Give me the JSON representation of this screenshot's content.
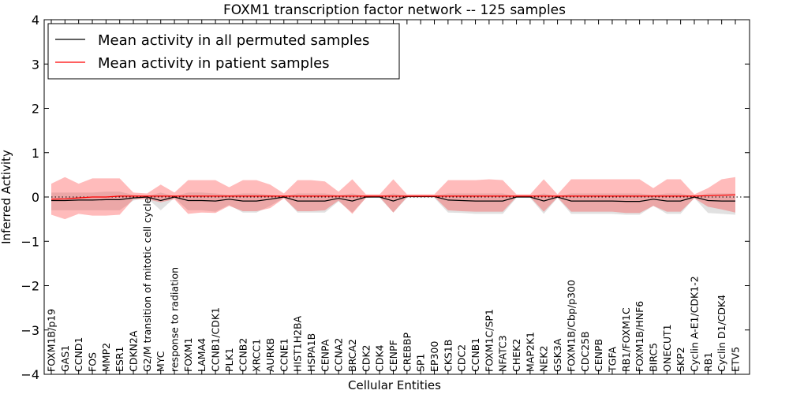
{
  "chart_data": {
    "type": "line",
    "title": "FOXM1 transcription factor network -- 125 samples",
    "xlabel": "Cellular Entities",
    "ylabel": "Inferred Activity",
    "ylim": [
      -4,
      4
    ],
    "yticks": [
      -4,
      -3,
      -2,
      -1,
      0,
      1,
      2,
      3,
      4
    ],
    "ytick_labels": [
      "−4",
      "−3",
      "−2",
      "−1",
      "0",
      "1",
      "2",
      "3",
      "4"
    ],
    "legend_position": "top-left",
    "categories": [
      "FOXM1B/p19",
      "GAS1",
      "CCND1",
      "FOS",
      "MMP2",
      "ESR1",
      "CDKN2A",
      "G2/M transition of mitotic cell cycle",
      "MYC",
      "response to radiation",
      "FOXM1",
      "LAMA4",
      "CCNB1/CDK1",
      "PLK1",
      "CCNB2",
      "XRCC1",
      "AURKB",
      "CCNE1",
      "HIST1H2BA",
      "HSPA1B",
      "CENPA",
      "CCNA2",
      "BRCA2",
      "CDK2",
      "CDK4",
      "CENPF",
      "CREBBP",
      "SP1",
      "EP300",
      "CKS1B",
      "CDC2",
      "CCNB1",
      "FOXM1C/SP1",
      "NFATC3",
      "CHEK2",
      "MAP2K1",
      "NEK2",
      "GSK3A",
      "FOXM1B/Cbp/p300",
      "CDC25B",
      "CENPB",
      "TGFA",
      "RB1/FOXM1C",
      "FOXM1B/HNF6",
      "BIRC5",
      "ONECUT1",
      "SKP2",
      "Cyclin A-E1/CDK1-2",
      "RB1",
      "Cyclin D1/CDK4",
      "ETV5"
    ],
    "series": [
      {
        "name": "Mean activity in all permuted samples",
        "color": "#000000",
        "values": [
          -0.08,
          -0.08,
          -0.07,
          -0.07,
          -0.06,
          -0.06,
          -0.02,
          0.0,
          -0.08,
          0.0,
          -0.08,
          -0.08,
          -0.09,
          -0.05,
          -0.09,
          -0.09,
          -0.05,
          0.0,
          -0.09,
          -0.09,
          -0.09,
          -0.03,
          -0.09,
          0.0,
          0.0,
          -0.09,
          0.01,
          0.01,
          0.01,
          -0.07,
          -0.08,
          -0.09,
          -0.09,
          -0.09,
          0.0,
          0.0,
          -0.09,
          0.0,
          -0.09,
          -0.09,
          -0.09,
          -0.09,
          -0.1,
          -0.1,
          -0.05,
          -0.09,
          -0.09,
          0.0,
          -0.08,
          -0.09,
          -0.09
        ],
        "band_low": [
          -0.3,
          -0.3,
          -0.3,
          -0.3,
          -0.3,
          -0.3,
          -0.08,
          -0.02,
          -0.3,
          -0.02,
          -0.3,
          -0.3,
          -0.33,
          -0.18,
          -0.35,
          -0.35,
          -0.2,
          -0.02,
          -0.35,
          -0.35,
          -0.35,
          -0.1,
          -0.35,
          -0.02,
          -0.02,
          -0.35,
          -0.02,
          -0.02,
          -0.02,
          -0.35,
          -0.36,
          -0.38,
          -0.38,
          -0.38,
          -0.02,
          -0.02,
          -0.38,
          -0.02,
          -0.38,
          -0.38,
          -0.38,
          -0.38,
          -0.4,
          -0.4,
          -0.2,
          -0.38,
          -0.38,
          -0.02,
          -0.36,
          -0.38,
          -0.4
        ],
        "band_high": [
          0.1,
          0.1,
          0.1,
          0.1,
          0.12,
          0.12,
          0.05,
          0.02,
          0.1,
          0.02,
          0.1,
          0.1,
          0.08,
          0.05,
          0.08,
          0.08,
          0.05,
          0.02,
          0.08,
          0.08,
          0.08,
          0.04,
          0.08,
          0.02,
          0.02,
          0.08,
          0.03,
          0.03,
          0.03,
          0.08,
          0.08,
          0.08,
          0.08,
          0.08,
          0.02,
          0.02,
          0.08,
          0.02,
          0.08,
          0.08,
          0.08,
          0.08,
          0.08,
          0.08,
          0.05,
          0.08,
          0.08,
          0.02,
          0.08,
          0.08,
          0.08
        ]
      },
      {
        "name": "Mean activity in patient samples",
        "color": "#ff0000",
        "values": [
          -0.05,
          -0.04,
          -0.02,
          0.0,
          0.0,
          0.02,
          0.02,
          0.02,
          0.02,
          0.02,
          0.02,
          0.02,
          0.02,
          0.02,
          0.02,
          0.02,
          0.02,
          0.02,
          0.02,
          0.02,
          0.02,
          0.02,
          0.02,
          0.02,
          0.02,
          0.02,
          0.02,
          0.02,
          0.02,
          0.02,
          0.02,
          0.02,
          0.02,
          0.02,
          0.02,
          0.02,
          0.02,
          0.02,
          0.02,
          0.02,
          0.02,
          0.02,
          0.02,
          0.02,
          0.02,
          0.02,
          0.02,
          0.02,
          0.03,
          0.04,
          0.05
        ],
        "band_low": [
          -0.4,
          -0.5,
          -0.38,
          -0.42,
          -0.42,
          -0.4,
          -0.05,
          -0.05,
          -0.12,
          -0.05,
          -0.38,
          -0.35,
          -0.36,
          -0.2,
          -0.32,
          -0.32,
          -0.25,
          -0.03,
          -0.32,
          -0.32,
          -0.3,
          -0.08,
          -0.38,
          -0.02,
          0.0,
          -0.35,
          0.0,
          0.0,
          0.0,
          -0.3,
          -0.32,
          -0.33,
          -0.33,
          -0.33,
          0.0,
          0.0,
          -0.33,
          -0.01,
          -0.33,
          -0.33,
          -0.33,
          -0.33,
          -0.36,
          -0.36,
          -0.2,
          -0.33,
          -0.33,
          -0.03,
          -0.22,
          -0.28,
          -0.35
        ],
        "band_high": [
          0.3,
          0.45,
          0.3,
          0.42,
          0.42,
          0.42,
          0.1,
          0.08,
          0.28,
          0.1,
          0.38,
          0.38,
          0.38,
          0.22,
          0.38,
          0.38,
          0.28,
          0.08,
          0.38,
          0.38,
          0.35,
          0.12,
          0.4,
          0.06,
          0.06,
          0.4,
          0.06,
          0.06,
          0.06,
          0.38,
          0.38,
          0.38,
          0.4,
          0.38,
          0.06,
          0.06,
          0.4,
          0.06,
          0.4,
          0.4,
          0.4,
          0.4,
          0.4,
          0.4,
          0.2,
          0.4,
          0.4,
          0.06,
          0.2,
          0.4,
          0.45
        ]
      }
    ],
    "reference_line": {
      "style": "dotted",
      "color": "#000000",
      "value": 0.0
    }
  }
}
